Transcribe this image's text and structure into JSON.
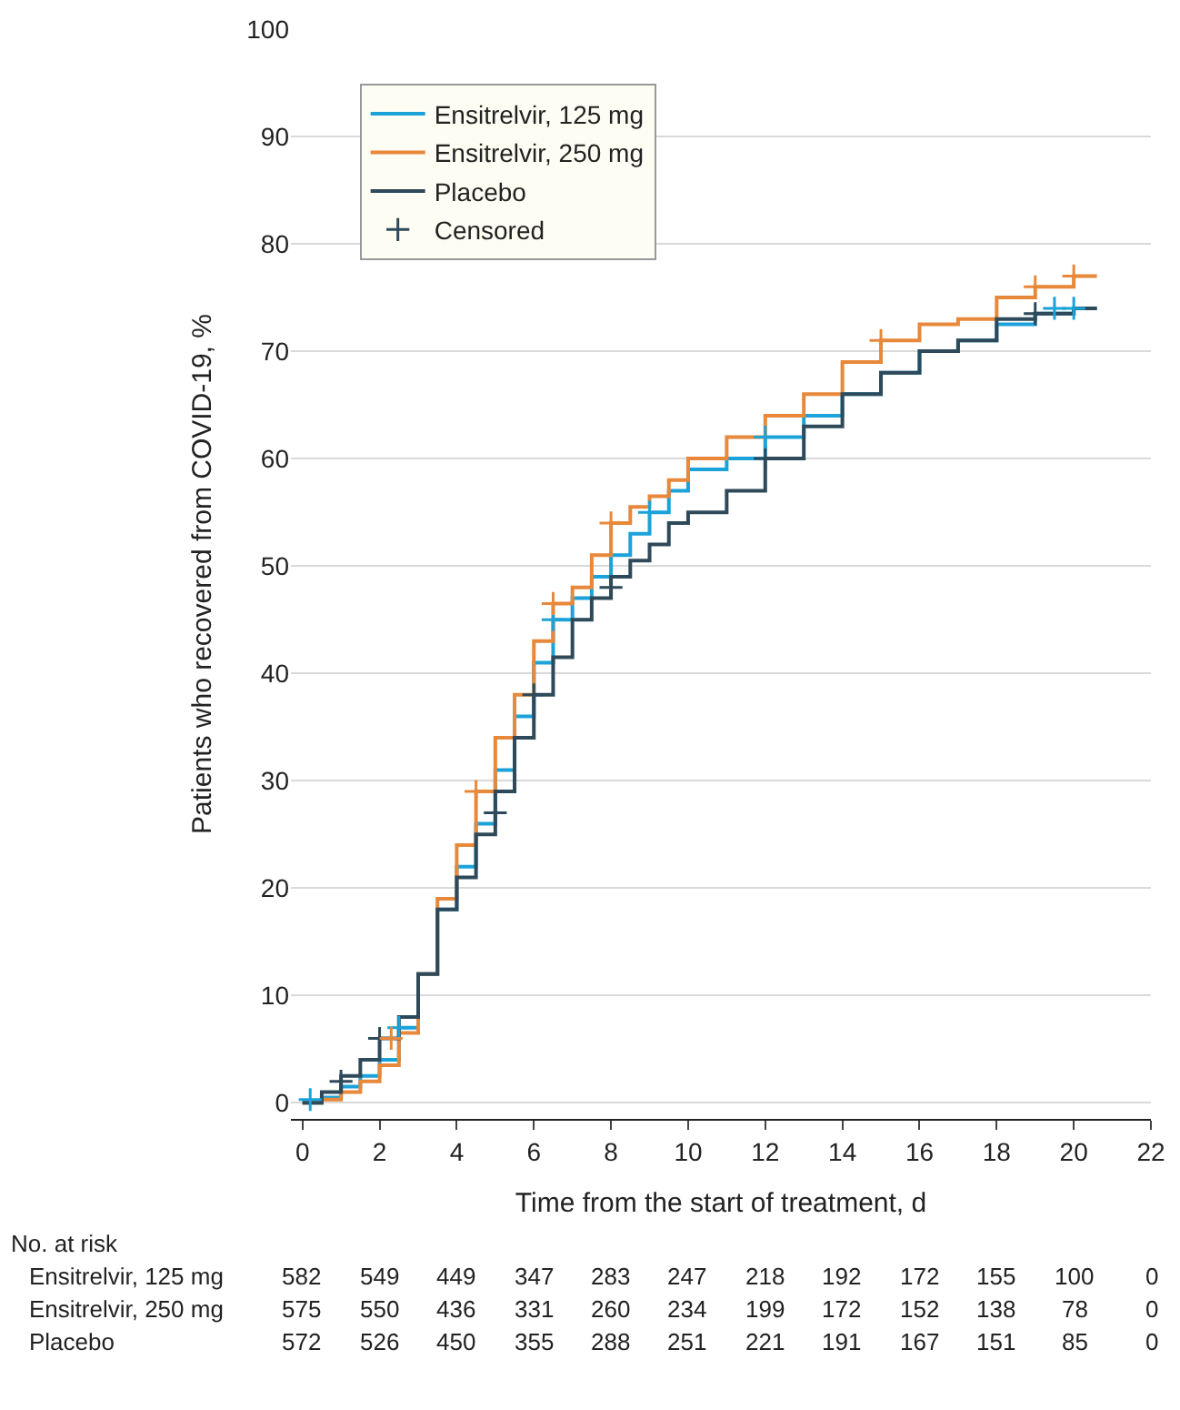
{
  "chart_data": {
    "type": "step",
    "xlabel": "Time from the start of treatment, d",
    "ylabel": "Patients who recovered from COVID-19, %",
    "xlim": [
      -0.3,
      22
    ],
    "xticks": [
      0,
      2,
      4,
      6,
      8,
      10,
      12,
      14,
      16,
      18,
      20,
      22
    ],
    "ylim": [
      -1.5,
      100
    ],
    "yticks": [
      0,
      10,
      20,
      30,
      40,
      50,
      60,
      70,
      80,
      90,
      100
    ],
    "grid": "y",
    "legend": "top left",
    "line_style": "solid",
    "series": [
      {
        "name": "Ensitrelvir, 125 mg",
        "color": "#1ba3d9",
        "x": [
          0,
          0.5,
          1,
          1.5,
          2,
          2.5,
          3,
          3.5,
          4,
          4.5,
          5,
          5.5,
          6,
          6.5,
          7,
          7.5,
          8,
          8.5,
          9,
          9.5,
          10,
          11,
          12,
          13,
          14,
          15,
          16,
          17,
          18,
          19,
          20,
          20.6
        ],
        "values": [
          0,
          0.5,
          1.5,
          2.5,
          4,
          7,
          12,
          18,
          22,
          26,
          31,
          36,
          41,
          45,
          47,
          49,
          51,
          53,
          55,
          57,
          59,
          60,
          62,
          64,
          66,
          68,
          70,
          71,
          72.5,
          73.5,
          74,
          74
        ]
      },
      {
        "name": "Ensitrelvir, 250 mg",
        "color": "#e8883a",
        "x": [
          0,
          0.5,
          1,
          1.5,
          2,
          2.5,
          3,
          3.5,
          4,
          4.5,
          5,
          5.5,
          6,
          6.5,
          7,
          7.5,
          8,
          8.5,
          9,
          9.5,
          10,
          11,
          12,
          13,
          14,
          15,
          16,
          17,
          18,
          19,
          20,
          20.6
        ],
        "values": [
          0,
          0.3,
          1,
          2,
          3.5,
          6.5,
          12,
          19,
          24,
          29,
          34,
          38,
          43,
          46.5,
          48,
          51,
          54,
          55.5,
          56.5,
          58,
          60,
          62,
          64,
          66,
          69,
          71,
          72.5,
          73,
          75,
          76,
          77,
          77
        ]
      },
      {
        "name": "Placebo",
        "color": "#2e4a5a",
        "x": [
          0,
          0.5,
          1,
          1.5,
          2,
          2.5,
          3,
          3.5,
          4,
          4.5,
          5,
          5.5,
          6,
          6.5,
          7,
          7.5,
          8,
          8.5,
          9,
          9.5,
          10,
          11,
          12,
          13,
          14,
          15,
          16,
          17,
          18,
          19,
          20,
          20.6
        ],
        "values": [
          0,
          1,
          2.5,
          4,
          6,
          8,
          12,
          18,
          21,
          25,
          29,
          34,
          38,
          41.5,
          45,
          47,
          49,
          50.5,
          52,
          54,
          55,
          57,
          60,
          63,
          66,
          68,
          70,
          71,
          73,
          73.5,
          74,
          74
        ]
      },
      {
        "name": "Censored",
        "type": "scatter",
        "marker": "cross",
        "x": [
          1,
          2,
          5,
          6,
          8,
          12,
          19,
          0.2,
          2.5,
          6.5,
          9,
          12,
          19.5,
          20,
          2.3,
          4.5,
          6.5,
          8,
          15,
          19,
          20
        ],
        "values": [
          2,
          6,
          27,
          38,
          48,
          60,
          73.5,
          0.3,
          7,
          45,
          55,
          62,
          74,
          74,
          6,
          29,
          46.5,
          54,
          71,
          76,
          77
        ],
        "colors": [
          "#2e4a5a",
          "#2e4a5a",
          "#2e4a5a",
          "#2e4a5a",
          "#2e4a5a",
          "#2e4a5a",
          "#2e4a5a",
          "#1ba3d9",
          "#1ba3d9",
          "#1ba3d9",
          "#1ba3d9",
          "#1ba3d9",
          "#1ba3d9",
          "#1ba3d9",
          "#e8883a",
          "#e8883a",
          "#e8883a",
          "#e8883a",
          "#e8883a",
          "#e8883a",
          "#e8883a"
        ]
      }
    ],
    "annotations": [
      "No. at risk",
      "Ensitrelvir, 125 mg",
      "582",
      "549",
      "449",
      "347",
      "283",
      "247",
      "218",
      "192",
      "172",
      "155",
      "100",
      "0",
      "Ensitrelvir, 250 mg",
      "575",
      "550",
      "436",
      "331",
      "260",
      "234",
      "199",
      "172",
      "152",
      "138",
      "78",
      "0",
      "Placebo",
      "572",
      "526",
      "450",
      "355",
      "288",
      "251",
      "221",
      "191",
      "167",
      "151",
      "85",
      "0"
    ]
  }
}
